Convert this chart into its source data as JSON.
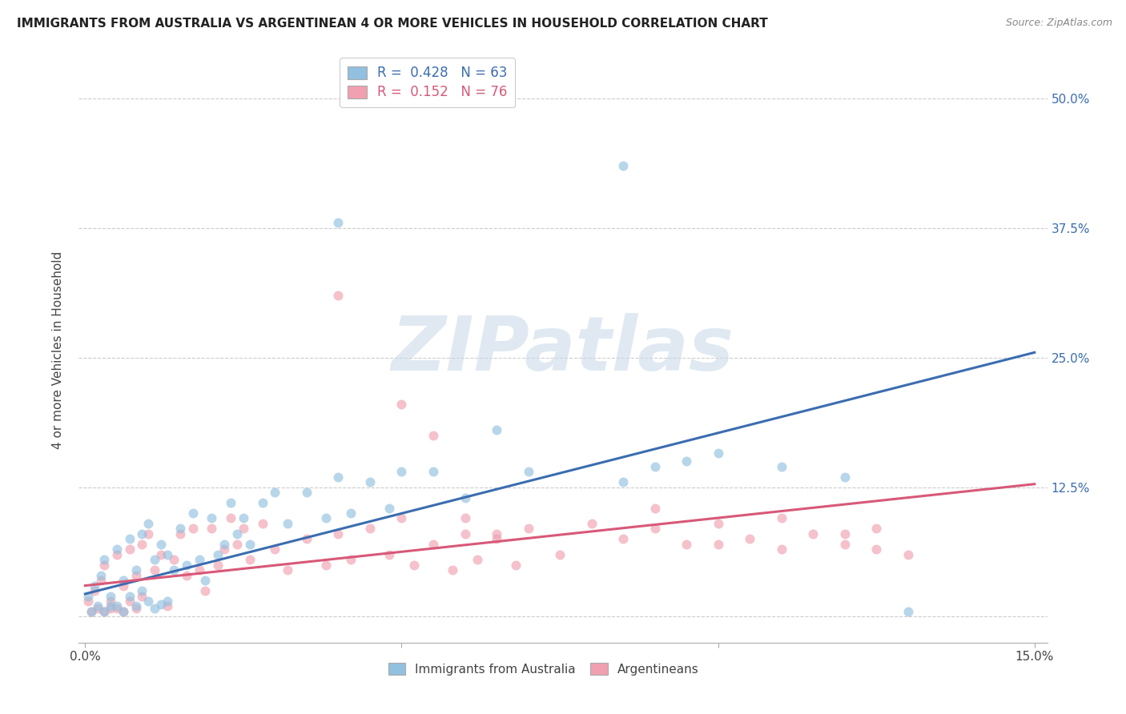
{
  "title": "IMMIGRANTS FROM AUSTRALIA VS ARGENTINEAN 4 OR MORE VEHICLES IN HOUSEHOLD CORRELATION CHART",
  "source": "Source: ZipAtlas.com",
  "ylabel": "4 or more Vehicles in Household",
  "xlim": [
    -0.001,
    0.152
  ],
  "ylim": [
    -0.025,
    0.54
  ],
  "x_ticks": [
    0.0,
    0.05,
    0.1,
    0.15
  ],
  "x_tick_labels": [
    "0.0%",
    "",
    "",
    "15.0%"
  ],
  "y_ticks": [
    0.0,
    0.125,
    0.25,
    0.375,
    0.5
  ],
  "y_tick_labels_right": [
    "",
    "12.5%",
    "25.0%",
    "37.5%",
    "50.0%"
  ],
  "blue_line_x": [
    0.0,
    0.15
  ],
  "blue_line_y": [
    0.022,
    0.255
  ],
  "pink_line_x": [
    0.0,
    0.15
  ],
  "pink_line_y": [
    0.03,
    0.128
  ],
  "blue_color": "#92c0e0",
  "blue_line_color": "#3b6db0",
  "pink_color": "#f0a0b0",
  "pink_line_color": "#d85878",
  "scatter_alpha": 0.65,
  "scatter_size": 75,
  "legend_blue_text": "R =  0.428   N = 63",
  "legend_pink_text": "R =  0.152   N = 76",
  "legend_blue_color": "#3b6db0",
  "legend_pink_color": "#d85878",
  "legend_blue_r_color": "#3b6db0",
  "legend_pink_r_color": "#d85878",
  "bottom_legend_blue": "Immigrants from Australia",
  "bottom_legend_pink": "Argentineans",
  "watermark": "ZIPatlas",
  "watermark_color": "#c8d8e8",
  "background_color": "#ffffff",
  "grid_color": "#cccccc",
  "blue_x": [
    0.0005,
    0.001,
    0.0015,
    0.002,
    0.0025,
    0.003,
    0.003,
    0.004,
    0.004,
    0.005,
    0.005,
    0.006,
    0.006,
    0.007,
    0.007,
    0.008,
    0.008,
    0.009,
    0.009,
    0.01,
    0.01,
    0.011,
    0.011,
    0.012,
    0.012,
    0.013,
    0.013,
    0.014,
    0.015,
    0.016,
    0.017,
    0.018,
    0.019,
    0.02,
    0.021,
    0.022,
    0.023,
    0.024,
    0.025,
    0.026,
    0.028,
    0.03,
    0.032,
    0.035,
    0.038,
    0.04,
    0.042,
    0.045,
    0.048,
    0.05,
    0.055,
    0.06,
    0.065,
    0.07,
    0.085,
    0.09,
    0.095,
    0.1,
    0.11,
    0.12,
    0.13,
    0.085,
    0.04
  ],
  "blue_y": [
    0.02,
    0.005,
    0.03,
    0.01,
    0.04,
    0.005,
    0.055,
    0.01,
    0.02,
    0.065,
    0.01,
    0.035,
    0.005,
    0.075,
    0.02,
    0.045,
    0.01,
    0.08,
    0.025,
    0.09,
    0.015,
    0.055,
    0.008,
    0.07,
    0.012,
    0.06,
    0.015,
    0.045,
    0.085,
    0.05,
    0.1,
    0.055,
    0.035,
    0.095,
    0.06,
    0.07,
    0.11,
    0.08,
    0.095,
    0.07,
    0.11,
    0.12,
    0.09,
    0.12,
    0.095,
    0.135,
    0.1,
    0.13,
    0.105,
    0.14,
    0.14,
    0.115,
    0.18,
    0.14,
    0.13,
    0.145,
    0.15,
    0.158,
    0.145,
    0.135,
    0.005,
    0.435,
    0.38
  ],
  "pink_x": [
    0.0005,
    0.001,
    0.0015,
    0.002,
    0.0025,
    0.003,
    0.003,
    0.004,
    0.004,
    0.005,
    0.005,
    0.006,
    0.006,
    0.007,
    0.007,
    0.008,
    0.008,
    0.009,
    0.009,
    0.01,
    0.011,
    0.012,
    0.013,
    0.014,
    0.015,
    0.016,
    0.017,
    0.018,
    0.019,
    0.02,
    0.021,
    0.022,
    0.023,
    0.024,
    0.025,
    0.026,
    0.028,
    0.03,
    0.032,
    0.035,
    0.038,
    0.04,
    0.042,
    0.045,
    0.048,
    0.05,
    0.052,
    0.055,
    0.058,
    0.06,
    0.062,
    0.065,
    0.068,
    0.07,
    0.075,
    0.08,
    0.085,
    0.09,
    0.095,
    0.1,
    0.11,
    0.12,
    0.125,
    0.04,
    0.05,
    0.055,
    0.06,
    0.065,
    0.09,
    0.1,
    0.105,
    0.11,
    0.115,
    0.12,
    0.125,
    0.13
  ],
  "pink_y": [
    0.015,
    0.005,
    0.025,
    0.008,
    0.035,
    0.005,
    0.05,
    0.008,
    0.015,
    0.06,
    0.008,
    0.03,
    0.005,
    0.065,
    0.015,
    0.04,
    0.008,
    0.07,
    0.02,
    0.08,
    0.045,
    0.06,
    0.01,
    0.055,
    0.08,
    0.04,
    0.085,
    0.045,
    0.025,
    0.085,
    0.05,
    0.065,
    0.095,
    0.07,
    0.085,
    0.055,
    0.09,
    0.065,
    0.045,
    0.075,
    0.05,
    0.08,
    0.055,
    0.085,
    0.06,
    0.095,
    0.05,
    0.07,
    0.045,
    0.08,
    0.055,
    0.075,
    0.05,
    0.085,
    0.06,
    0.09,
    0.075,
    0.085,
    0.07,
    0.09,
    0.095,
    0.08,
    0.085,
    0.31,
    0.205,
    0.175,
    0.095,
    0.08,
    0.105,
    0.07,
    0.075,
    0.065,
    0.08,
    0.07,
    0.065,
    0.06
  ]
}
